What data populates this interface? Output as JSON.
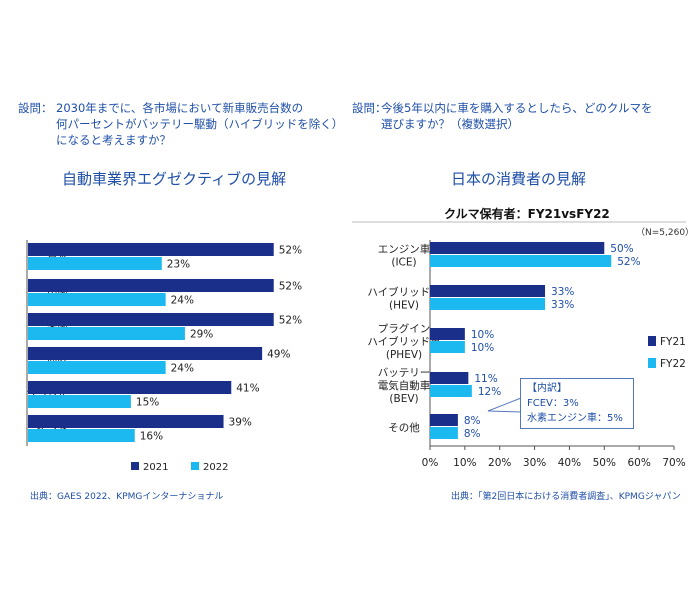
{
  "left": {
    "question_prefix": "設問：",
    "question_lines": [
      "2030年までに、各市場において新車販売台数の",
      "何パーセントがバッテリー駆動（ハイブリッドを除く）",
      "になると考えますか？"
    ],
    "title": "自動車業界エグゼクティブの見解",
    "source": "出典：GAES 2022、KPMGインターナショナル"
  },
  "right": {
    "question_prefix": "設問：",
    "question_lines": [
      "今後5年以内に車を購入するとしたら、どのクルマを",
      "選びますか？（複数選択）"
    ],
    "title": "日本の消費者の見解",
    "subtitle": "クルマ保有者：FY21vsFY22",
    "n_note": "（N=5,260）",
    "callout_lines": [
      "【内訳】",
      "FCEV：3%",
      "水素エンジン車：5%"
    ],
    "source": "出典：「第2回日本における消費者調査」、KPMGジャパン"
  },
  "colors": {
    "dark": "#1a2f8a",
    "light": "#1cb8f0",
    "text": "#1f4fa8"
  },
  "chart_data": [
    {
      "type": "bar",
      "orientation": "horizontal",
      "categories": [
        "日本",
        "中国",
        "米国",
        "西欧",
        "ブラジル",
        "インド"
      ],
      "series": [
        {
          "name": "2021",
          "values": [
            52,
            52,
            52,
            49,
            41,
            39
          ]
        },
        {
          "name": "2022",
          "values": [
            23,
            24,
            29,
            24,
            15,
            16
          ]
        }
      ],
      "value_suffix": "%",
      "legend": "bottom",
      "grid": false
    },
    {
      "type": "bar",
      "orientation": "horizontal",
      "categories": [
        [
          "エンジン車",
          "(ICE)"
        ],
        [
          "ハイブリッド車",
          "(HEV)"
        ],
        [
          "プラグイン",
          "ハイブリッド車",
          "(PHEV)"
        ],
        [
          "バッテリー",
          "電気自動車",
          "(BEV)"
        ],
        [
          "その他"
        ]
      ],
      "series": [
        {
          "name": "FY21",
          "values": [
            50,
            33,
            10,
            11,
            8
          ]
        },
        {
          "name": "FY22",
          "values": [
            52,
            33,
            10,
            12,
            8
          ]
        }
      ],
      "xlim": [
        0,
        70
      ],
      "xticks": [
        "0%",
        "10%",
        "20%",
        "30%",
        "40%",
        "50%",
        "60%",
        "70%"
      ],
      "value_suffix": "%",
      "legend": "right",
      "grid": false
    }
  ]
}
